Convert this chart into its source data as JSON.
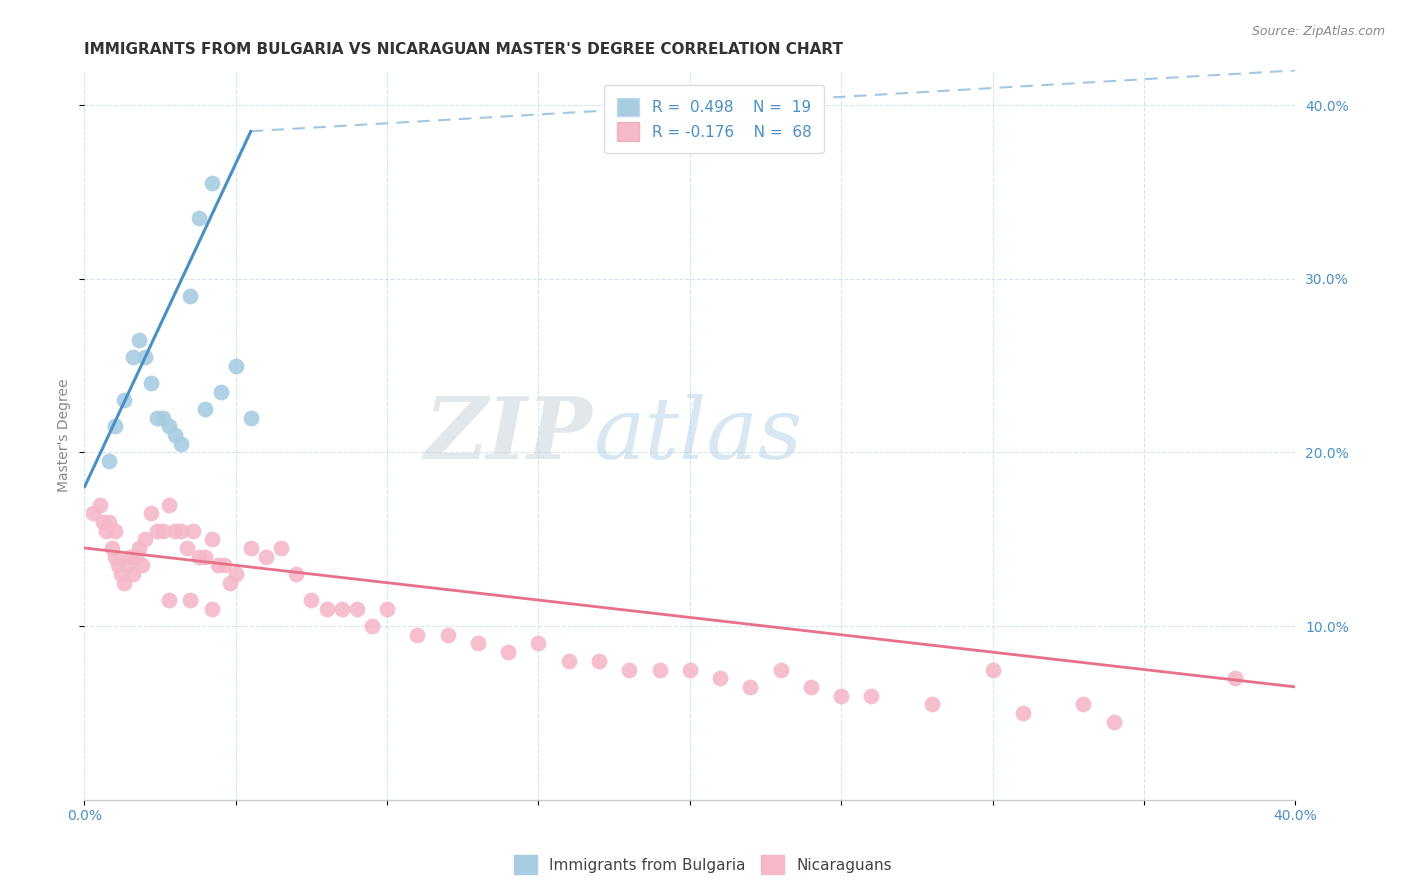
{
  "title": "IMMIGRANTS FROM BULGARIA VS NICARAGUAN MASTER'S DEGREE CORRELATION CHART",
  "source": "Source: ZipAtlas.com",
  "ylabel": "Master's Degree",
  "xlim": [
    0.0,
    0.4
  ],
  "ylim": [
    0.0,
    0.42
  ],
  "xticks": [
    0.0,
    0.05,
    0.1,
    0.15,
    0.2,
    0.25,
    0.3,
    0.35,
    0.4
  ],
  "xtick_labels": [
    "0.0%",
    "",
    "",
    "",
    "",
    "",
    "",
    "",
    "40.0%"
  ],
  "yticks_right": [
    0.1,
    0.2,
    0.3,
    0.4
  ],
  "ytick_labels_right": [
    "10.0%",
    "20.0%",
    "30.0%",
    "40.0%"
  ],
  "blue_color": "#a8cce0",
  "pink_color": "#f5b8c8",
  "blue_line_color": "#4a90c4",
  "pink_line_color": "#e8708a",
  "legend_text_color": "#4a90c4",
  "watermark_color": "#ddeef8",
  "blue_x": [
    0.008,
    0.01,
    0.013,
    0.016,
    0.018,
    0.02,
    0.022,
    0.024,
    0.026,
    0.028,
    0.03,
    0.032,
    0.035,
    0.038,
    0.04,
    0.042,
    0.045,
    0.05,
    0.055
  ],
  "blue_y": [
    0.195,
    0.215,
    0.23,
    0.255,
    0.265,
    0.255,
    0.24,
    0.22,
    0.22,
    0.215,
    0.21,
    0.205,
    0.29,
    0.335,
    0.225,
    0.355,
    0.235,
    0.25,
    0.22
  ],
  "pink_x": [
    0.003,
    0.005,
    0.006,
    0.007,
    0.008,
    0.009,
    0.01,
    0.01,
    0.011,
    0.012,
    0.013,
    0.014,
    0.015,
    0.016,
    0.017,
    0.018,
    0.019,
    0.02,
    0.022,
    0.024,
    0.026,
    0.028,
    0.03,
    0.032,
    0.034,
    0.036,
    0.038,
    0.04,
    0.042,
    0.044,
    0.046,
    0.048,
    0.05,
    0.055,
    0.06,
    0.065,
    0.07,
    0.075,
    0.08,
    0.085,
    0.09,
    0.095,
    0.1,
    0.11,
    0.12,
    0.13,
    0.14,
    0.15,
    0.16,
    0.17,
    0.18,
    0.19,
    0.2,
    0.21,
    0.22,
    0.23,
    0.24,
    0.25,
    0.26,
    0.28,
    0.3,
    0.31,
    0.33,
    0.34,
    0.38,
    0.028,
    0.035,
    0.042
  ],
  "pink_y": [
    0.165,
    0.17,
    0.16,
    0.155,
    0.16,
    0.145,
    0.155,
    0.14,
    0.135,
    0.13,
    0.125,
    0.135,
    0.14,
    0.13,
    0.14,
    0.145,
    0.135,
    0.15,
    0.165,
    0.155,
    0.155,
    0.17,
    0.155,
    0.155,
    0.145,
    0.155,
    0.14,
    0.14,
    0.15,
    0.135,
    0.135,
    0.125,
    0.13,
    0.145,
    0.14,
    0.145,
    0.13,
    0.115,
    0.11,
    0.11,
    0.11,
    0.1,
    0.11,
    0.095,
    0.095,
    0.09,
    0.085,
    0.09,
    0.08,
    0.08,
    0.075,
    0.075,
    0.075,
    0.07,
    0.065,
    0.075,
    0.065,
    0.06,
    0.06,
    0.055,
    0.075,
    0.05,
    0.055,
    0.045,
    0.07,
    0.115,
    0.115,
    0.11
  ],
  "blue_trend_x0": 0.0,
  "blue_trend_y0": 0.18,
  "blue_trend_x1": 0.055,
  "blue_trend_y1": 0.385,
  "blue_trend_dash_x0": 0.055,
  "blue_trend_dash_y0": 0.385,
  "blue_trend_dash_x1": 0.4,
  "blue_trend_dash_y1": 0.42,
  "pink_trend_x0": 0.0,
  "pink_trend_y0": 0.145,
  "pink_trend_x1": 0.4,
  "pink_trend_y1": 0.065,
  "title_fontsize": 11,
  "axis_label_fontsize": 10,
  "tick_fontsize": 10,
  "legend_fontsize": 11
}
